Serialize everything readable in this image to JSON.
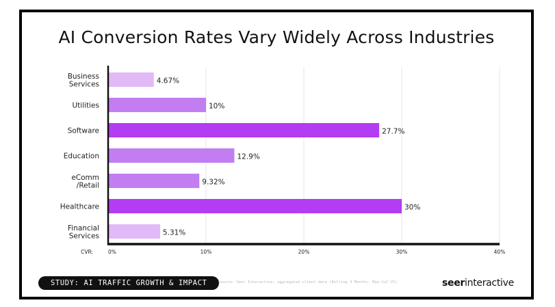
{
  "chart_data": {
    "type": "bar",
    "orientation": "horizontal",
    "title": "AI Conversion Rates Vary Widely Across Industries",
    "categories": [
      [
        "Business",
        "Services"
      ],
      [
        "Utilities"
      ],
      [
        "Software"
      ],
      [
        "Education"
      ],
      [
        "eComm",
        "/Retail"
      ],
      [
        "Healthcare"
      ],
      [
        "Financial",
        "Services"
      ]
    ],
    "values": [
      4.67,
      10,
      27.7,
      12.9,
      9.32,
      30,
      5.31
    ],
    "value_labels": [
      "4.67%",
      "10%",
      "27.7%",
      "12.9%",
      "9.32%",
      "30%",
      "5.31%"
    ],
    "xlim": [
      0,
      40
    ],
    "xticks": [
      0,
      10,
      20,
      30,
      40
    ],
    "xtick_labels": [
      "0%",
      "10%",
      "20%",
      "30%",
      "40%"
    ],
    "axis_prefix_label": "CVR:",
    "grid": "vertical",
    "colors": {
      "light": "#e2b9f7",
      "medium": "#c27ef0",
      "strong": "#b23df2"
    },
    "bar_color_levels": [
      "light",
      "medium",
      "strong",
      "medium",
      "medium",
      "strong",
      "light"
    ]
  },
  "footer": {
    "badge": "STUDY: AI TRAFFIC GROWTH & IMPACT",
    "source": "Source: Seer Interactive, aggregated client data (Rolling 3 Months: May-Jul'25)",
    "brand_part1": "seer",
    "brand_part2": "interactive"
  }
}
